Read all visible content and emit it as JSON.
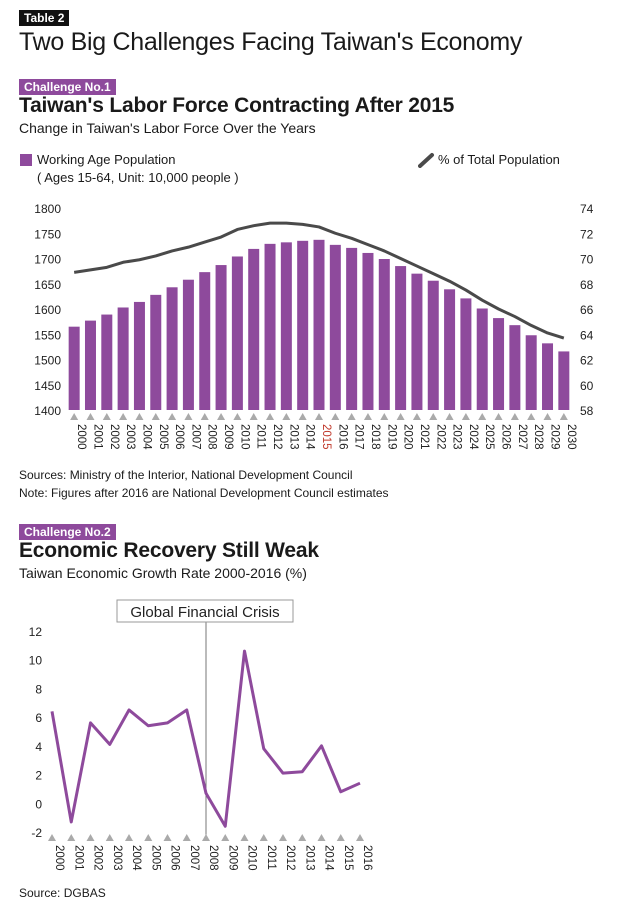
{
  "header": {
    "table_tag": "Table 2",
    "title": "Two Big Challenges Facing Taiwan's Economy"
  },
  "section1": {
    "tag": "Challenge No.1",
    "title": "Taiwan's Labor Force Contracting After 2015",
    "subtitle": "Change in Taiwan's Labor Force Over the Years",
    "legend_bar_label": "Working Age Population",
    "legend_bar_sublabel": "( Ages 15-64, Unit: 10,000 people )",
    "legend_line_label": "% of Total Population",
    "sources": "Sources: Ministry of the Interior, National Development Council",
    "note": "Note: Figures after 2016 are National Development Council estimates"
  },
  "section2": {
    "tag": "Challenge No.2",
    "title": "Economic Recovery Still Weak",
    "subtitle": "Taiwan Economic Growth Rate 2000-2016 (%)",
    "annotation": "Global Financial Crisis",
    "source": "Source: DGBAS"
  },
  "colors": {
    "bar": "#8e4a9c",
    "line_dark": "#4a4a4a",
    "line_purple": "#8e4a9c",
    "highlight_year": "#c0392b",
    "tick_marker": "#aaaaaa"
  },
  "chart_data": [
    {
      "type": "bar",
      "categories": [
        "2000",
        "2001",
        "2002",
        "2003",
        "2004",
        "2005",
        "2006",
        "2007",
        "2008",
        "2009",
        "2010",
        "2011",
        "2012",
        "2013",
        "2014",
        "2015",
        "2016",
        "2017",
        "2018",
        "2019",
        "2020",
        "2021",
        "2022",
        "2023",
        "2024",
        "2025",
        "2026",
        "2027",
        "2028",
        "2029",
        "2030"
      ],
      "highlight_category": "2015",
      "series": [
        {
          "name": "Working Age Population",
          "axis": "left",
          "type": "bar",
          "values": [
            1565,
            1577,
            1589,
            1603,
            1614,
            1628,
            1643,
            1658,
            1673,
            1687,
            1704,
            1719,
            1729,
            1732,
            1735,
            1737,
            1727,
            1721,
            1711,
            1699,
            1685,
            1670,
            1656,
            1639,
            1621,
            1601,
            1582,
            1568,
            1548,
            1532,
            1516
          ]
        },
        {
          "name": "% of Total Population",
          "axis": "right",
          "type": "line",
          "values": [
            68.9,
            69.1,
            69.3,
            69.7,
            69.9,
            70.2,
            70.6,
            70.9,
            71.3,
            71.7,
            72.3,
            72.6,
            72.8,
            72.8,
            72.7,
            72.5,
            72.0,
            71.6,
            71.1,
            70.6,
            70.0,
            69.4,
            68.8,
            68.2,
            67.5,
            66.7,
            66.0,
            65.4,
            64.7,
            64.1,
            63.7
          ]
        }
      ],
      "y_left": {
        "ticks": [
          1400,
          1450,
          1500,
          1550,
          1600,
          1650,
          1700,
          1750,
          1800
        ],
        "range": [
          1400,
          1800
        ]
      },
      "y_right": {
        "ticks": [
          58,
          60,
          62,
          64,
          66,
          68,
          70,
          72,
          74
        ],
        "range": [
          58,
          74
        ]
      },
      "legend_placement": "top",
      "grid": false
    },
    {
      "type": "line",
      "categories": [
        "2000",
        "2001",
        "2002",
        "2003",
        "2004",
        "2005",
        "2006",
        "2007",
        "2008",
        "2009",
        "2010",
        "2011",
        "2012",
        "2013",
        "2014",
        "2015",
        "2016"
      ],
      "series": [
        {
          "values": [
            6.4,
            -1.3,
            5.6,
            4.1,
            6.5,
            5.4,
            5.6,
            6.5,
            0.7,
            -1.6,
            10.6,
            3.8,
            2.1,
            2.2,
            4.0,
            0.8,
            1.4
          ]
        }
      ],
      "y": {
        "ticks": [
          -2,
          0,
          2,
          4,
          6,
          8,
          10,
          12
        ],
        "range": [
          -2,
          12
        ]
      },
      "annotations": [
        {
          "label": "Global Financial Crisis",
          "at_category": "2008"
        }
      ],
      "grid": false
    }
  ]
}
